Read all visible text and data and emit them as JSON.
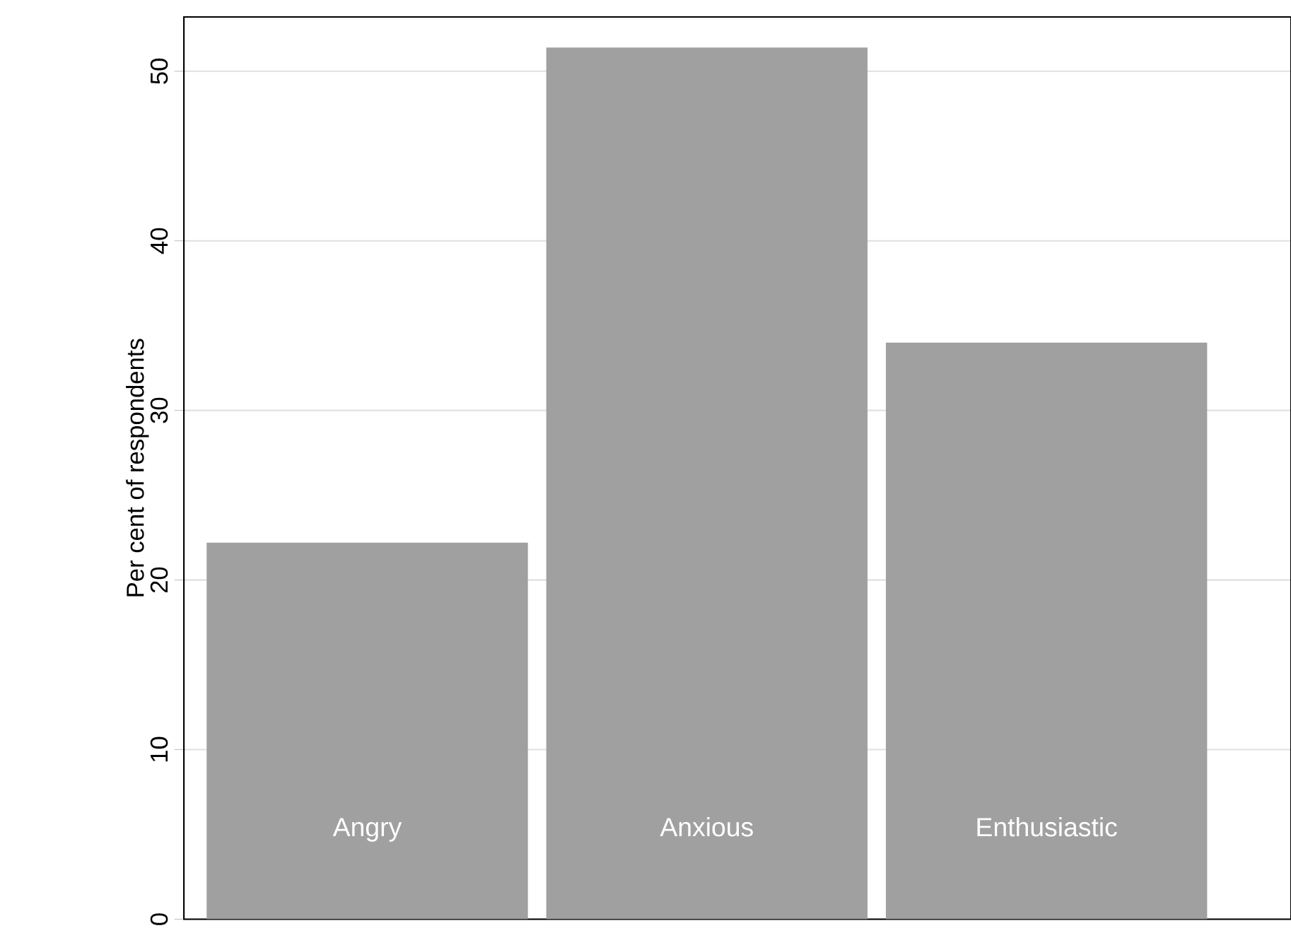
{
  "chart_data": {
    "type": "bar",
    "ylabel": "Per cent of respondents",
    "categories": [
      "Angry",
      "Anxious",
      "Enthusiastic"
    ],
    "values": [
      22.2,
      51.4,
      34.0
    ],
    "color": "#a0a0a0",
    "ylim": [
      0,
      53.2
    ],
    "yticks": [
      0,
      10,
      20,
      30,
      40,
      50
    ],
    "grid": "y"
  }
}
